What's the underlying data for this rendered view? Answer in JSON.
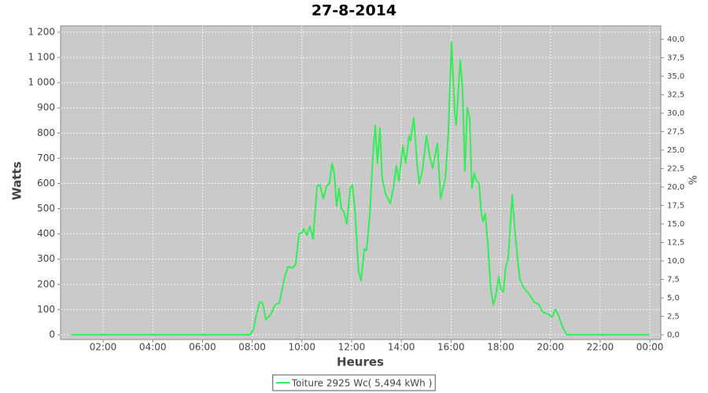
{
  "chart_data": {
    "type": "line",
    "title": "27-8-2014",
    "x_label": "Heures",
    "y_label": "Watts",
    "y2_label": "%",
    "x": [
      0.7,
      7.92,
      8.04,
      8.17,
      8.3,
      8.42,
      8.55,
      8.74,
      8.93,
      9.09,
      9.31,
      9.44,
      9.63,
      9.75,
      9.88,
      10.01,
      10.07,
      10.2,
      10.32,
      10.45,
      10.61,
      10.73,
      10.86,
      10.99,
      11.11,
      11.21,
      11.3,
      11.4,
      11.49,
      11.59,
      11.68,
      11.81,
      11.94,
      12.03,
      12.13,
      12.19,
      12.28,
      12.38,
      12.51,
      12.6,
      12.73,
      12.85,
      12.95,
      13.04,
      13.14,
      13.23,
      13.36,
      13.55,
      13.68,
      13.8,
      13.9,
      14.06,
      14.18,
      14.31,
      14.37,
      14.5,
      14.63,
      14.72,
      14.85,
      15.01,
      15.16,
      15.26,
      15.45,
      15.58,
      15.77,
      15.89,
      16.02,
      16.15,
      16.21,
      16.37,
      16.46,
      16.56,
      16.65,
      16.75,
      16.84,
      16.94,
      17.03,
      17.13,
      17.22,
      17.29,
      17.38,
      17.48,
      17.6,
      17.7,
      17.79,
      17.92,
      18.01,
      18.11,
      18.2,
      18.3,
      18.46,
      18.58,
      18.68,
      18.77,
      18.9,
      19.06,
      19.22,
      19.34,
      19.53,
      19.69,
      19.94,
      20.07,
      20.2,
      20.32,
      20.45,
      20.54,
      20.67,
      23.99
    ],
    "series": [
      {
        "name": "Toiture 2925 Wc( 5,494 kWh )",
        "color": "#33ee55",
        "values": [
          0,
          0,
          20,
          80,
          130,
          125,
          60,
          80,
          120,
          125,
          230,
          270,
          265,
          280,
          400,
          405,
          420,
          395,
          430,
          380,
          590,
          595,
          540,
          590,
          600,
          680,
          640,
          510,
          580,
          500,
          490,
          440,
          580,
          595,
          500,
          400,
          250,
          215,
          340,
          335,
          470,
          700,
          830,
          680,
          820,
          620,
          560,
          520,
          580,
          670,
          610,
          750,
          680,
          790,
          770,
          860,
          680,
          600,
          650,
          790,
          700,
          660,
          760,
          540,
          620,
          800,
          1160,
          880,
          830,
          1090,
          980,
          650,
          900,
          860,
          580,
          640,
          610,
          600,
          480,
          450,
          480,
          360,
          180,
          120,
          150,
          230,
          180,
          170,
          270,
          300,
          555,
          400,
          300,
          220,
          190,
          170,
          150,
          130,
          120,
          90,
          80,
          70,
          100,
          80,
          40,
          20,
          0,
          0
        ]
      }
    ],
    "xlim": [
      0.29,
      24.44
    ],
    "xticks": [
      {
        "value": 2,
        "label": "02:00"
      },
      {
        "value": 4,
        "label": "04:00"
      },
      {
        "value": 6,
        "label": "06:00"
      },
      {
        "value": 8,
        "label": "08:00"
      },
      {
        "value": 10,
        "label": "10:00"
      },
      {
        "value": 12,
        "label": "12:00"
      },
      {
        "value": 14,
        "label": "14:00"
      },
      {
        "value": 16,
        "label": "16:00"
      },
      {
        "value": 18,
        "label": "18:00"
      },
      {
        "value": 20,
        "label": "20:00"
      },
      {
        "value": 22,
        "label": "22:00"
      },
      {
        "value": 24,
        "label": "00:00"
      }
    ],
    "ylim": [
      -19,
      1225
    ],
    "yticks": [
      0,
      100,
      200,
      300,
      400,
      500,
      600,
      700,
      800,
      900,
      {
        "value": 1000,
        "label": "1 000"
      },
      {
        "value": 1100,
        "label": "1 100"
      },
      {
        "value": 1200,
        "label": "1 200"
      }
    ],
    "y2lim": [
      -0.64,
      41.8
    ],
    "y2ticks": [
      {
        "value": 0,
        "label": "0,0"
      },
      {
        "value": 2.5,
        "label": "2,5"
      },
      {
        "value": 5,
        "label": "5,0"
      },
      {
        "value": 7.5,
        "label": "7,5"
      },
      {
        "value": 10,
        "label": "10,0"
      },
      {
        "value": 12.5,
        "label": "12,5"
      },
      {
        "value": 15,
        "label": "15,0"
      },
      {
        "value": 17.5,
        "label": "17,5"
      },
      {
        "value": 20,
        "label": "20,0"
      },
      {
        "value": 22.5,
        "label": "22,5"
      },
      {
        "value": 25,
        "label": "25,0"
      },
      {
        "value": 27.5,
        "label": "27,5"
      },
      {
        "value": 30,
        "label": "30,0"
      },
      {
        "value": 32.5,
        "label": "32,5"
      },
      {
        "value": 35,
        "label": "35,0"
      },
      {
        "value": 37.5,
        "label": "37,5"
      },
      {
        "value": 40,
        "label": "40,0"
      }
    ],
    "grid": true,
    "legend": "bottom"
  }
}
